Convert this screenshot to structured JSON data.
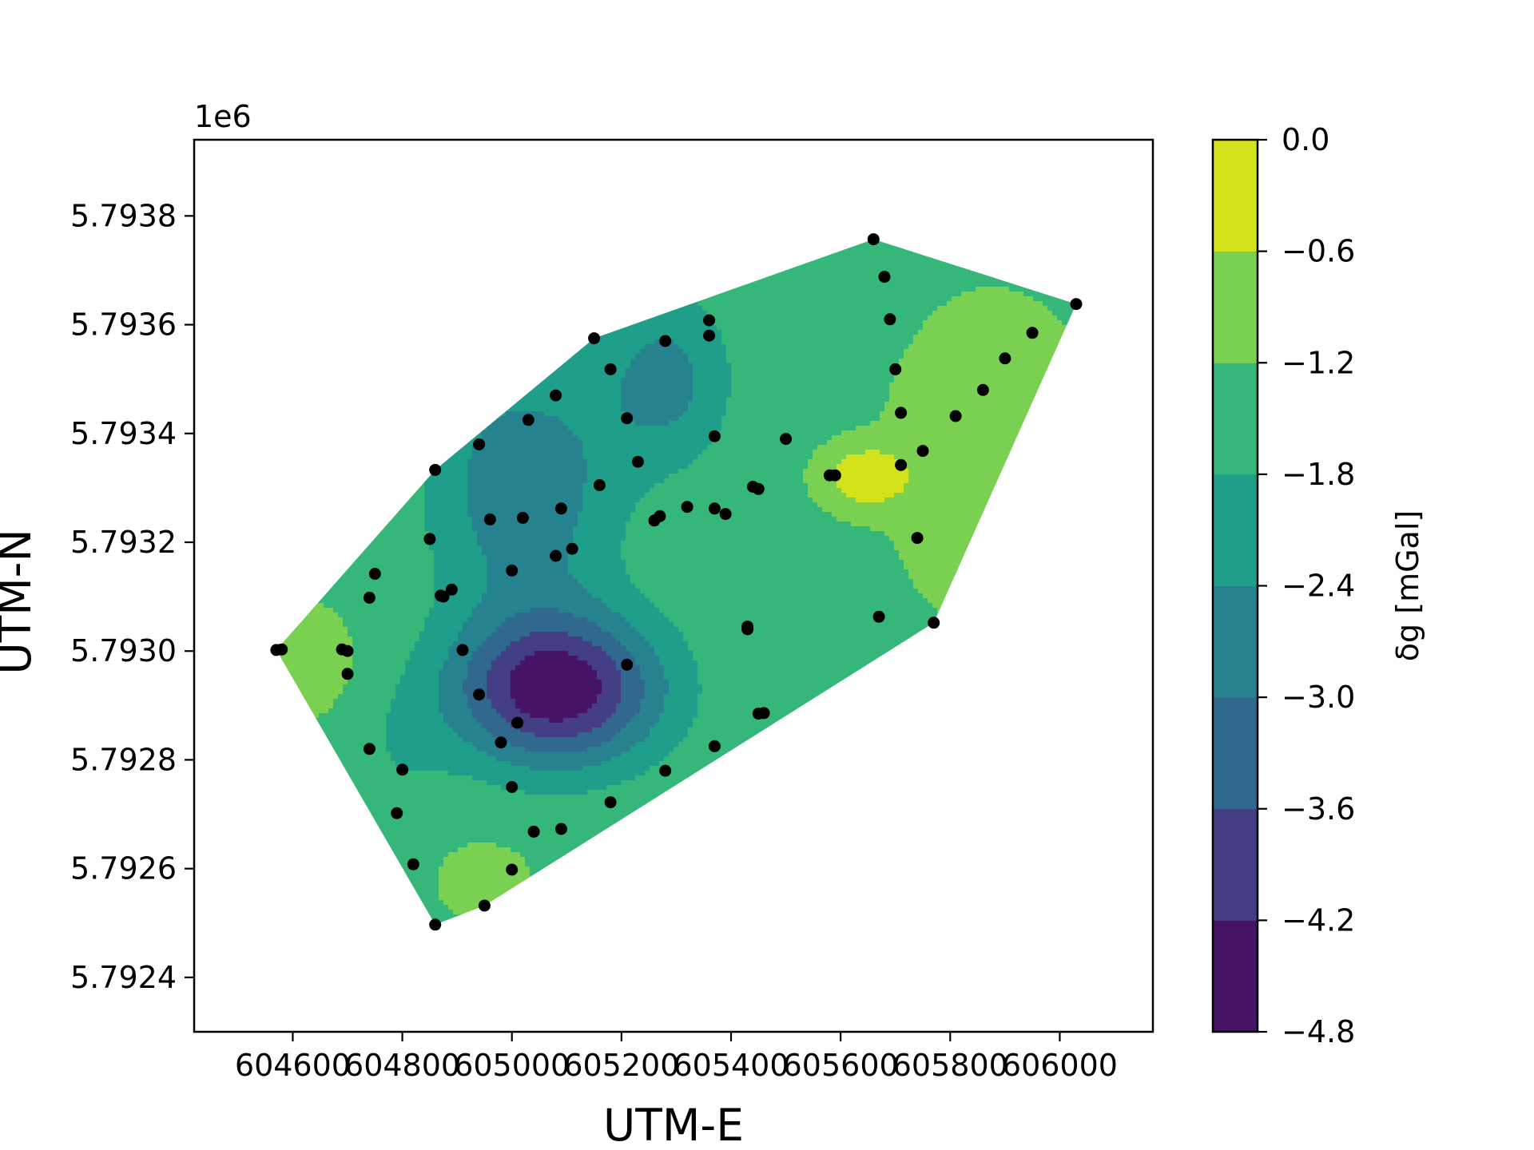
{
  "chart_data": {
    "type": "contourf+scatter",
    "title": "",
    "xlabel": "UTM-E",
    "ylabel": "UTM-N",
    "y_offset_label": "1e6",
    "xlim": [
      604420,
      606170
    ],
    "ylim": [
      5792300,
      5793940
    ],
    "xticks": [
      604600,
      604800,
      605000,
      605200,
      605400,
      605600,
      605800,
      606000
    ],
    "xtick_labels": [
      "604600",
      "604800",
      "605000",
      "605200",
      "605400",
      "605600",
      "605800",
      "606000"
    ],
    "yticks": [
      5792400,
      5792600,
      5792800,
      5793000,
      5793200,
      5793400,
      5793600,
      5793800
    ],
    "ytick_labels": [
      "5.7924",
      "5.7926",
      "5.7928",
      "5.7930",
      "5.7932",
      "5.7934",
      "5.7936",
      "5.7938"
    ],
    "colorbar": {
      "label": "δg [mGal]",
      "levels": [
        -4.8,
        -4.2,
        -3.6,
        -3.0,
        -2.4,
        -1.8,
        -1.2,
        -0.6,
        0.0
      ],
      "tick_labels": [
        "−4.8",
        "−4.2",
        "−3.6",
        "−3.0",
        "−2.4",
        "−1.8",
        "−1.2",
        "−0.6",
        "0.0"
      ],
      "colors": [
        "#471365",
        "#433e85",
        "#31688e",
        "#26828e",
        "#1f9e89",
        "#35b779",
        "#7ad151",
        "#d2e21b"
      ]
    },
    "station_color": "#000000",
    "stations": [
      [
        604570,
        5793002
      ],
      [
        604580,
        5793003
      ],
      [
        604690,
        5793003
      ],
      [
        604700,
        5793000
      ],
      [
        604700,
        5792958
      ],
      [
        604740,
        5793098
      ],
      [
        604750,
        5793142
      ],
      [
        604740,
        5792820
      ],
      [
        604790,
        5792702
      ],
      [
        604800,
        5792782
      ],
      [
        604820,
        5792608
      ],
      [
        604850,
        5793206
      ],
      [
        604860,
        5793333
      ],
      [
        604860,
        5792497
      ],
      [
        604870,
        5793102
      ],
      [
        604875,
        5793100
      ],
      [
        604890,
        5793113
      ],
      [
        604910,
        5793002
      ],
      [
        604940,
        5793380
      ],
      [
        604940,
        5792920
      ],
      [
        604950,
        5792532
      ],
      [
        604960,
        5793242
      ],
      [
        604980,
        5792832
      ],
      [
        605000,
        5793148
      ],
      [
        605000,
        5792750
      ],
      [
        605000,
        5792598
      ],
      [
        605010,
        5792868
      ],
      [
        605020,
        5793245
      ],
      [
        605030,
        5793425
      ],
      [
        605040,
        5792668
      ],
      [
        605080,
        5793470
      ],
      [
        605080,
        5793175
      ],
      [
        605090,
        5793262
      ],
      [
        605090,
        5792673
      ],
      [
        605110,
        5793188
      ],
      [
        605150,
        5793575
      ],
      [
        605160,
        5793305
      ],
      [
        605180,
        5793518
      ],
      [
        605180,
        5792722
      ],
      [
        605210,
        5793428
      ],
      [
        605210,
        5792975
      ],
      [
        605230,
        5793348
      ],
      [
        605260,
        5793240
      ],
      [
        605270,
        5793248
      ],
      [
        605280,
        5793570
      ],
      [
        605280,
        5792780
      ],
      [
        605320,
        5793265
      ],
      [
        605360,
        5793608
      ],
      [
        605360,
        5793580
      ],
      [
        605370,
        5793395
      ],
      [
        605370,
        5793262
      ],
      [
        605370,
        5792825
      ],
      [
        605390,
        5793252
      ],
      [
        605430,
        5793045
      ],
      [
        605430,
        5793040
      ],
      [
        605440,
        5793302
      ],
      [
        605450,
        5793298
      ],
      [
        605450,
        5792885
      ],
      [
        605460,
        5792886
      ],
      [
        605500,
        5793390
      ],
      [
        605580,
        5793323
      ],
      [
        605590,
        5793323
      ],
      [
        605660,
        5793757
      ],
      [
        605670,
        5793063
      ],
      [
        605680,
        5793688
      ],
      [
        605690,
        5793610
      ],
      [
        605700,
        5793518
      ],
      [
        605710,
        5793438
      ],
      [
        605710,
        5793342
      ],
      [
        605740,
        5793208
      ],
      [
        605750,
        5793368
      ],
      [
        605770,
        5793052
      ],
      [
        605810,
        5793432
      ],
      [
        605860,
        5793480
      ],
      [
        605900,
        5793538
      ],
      [
        605950,
        5793585
      ],
      [
        606030,
        5793638
      ]
    ]
  }
}
